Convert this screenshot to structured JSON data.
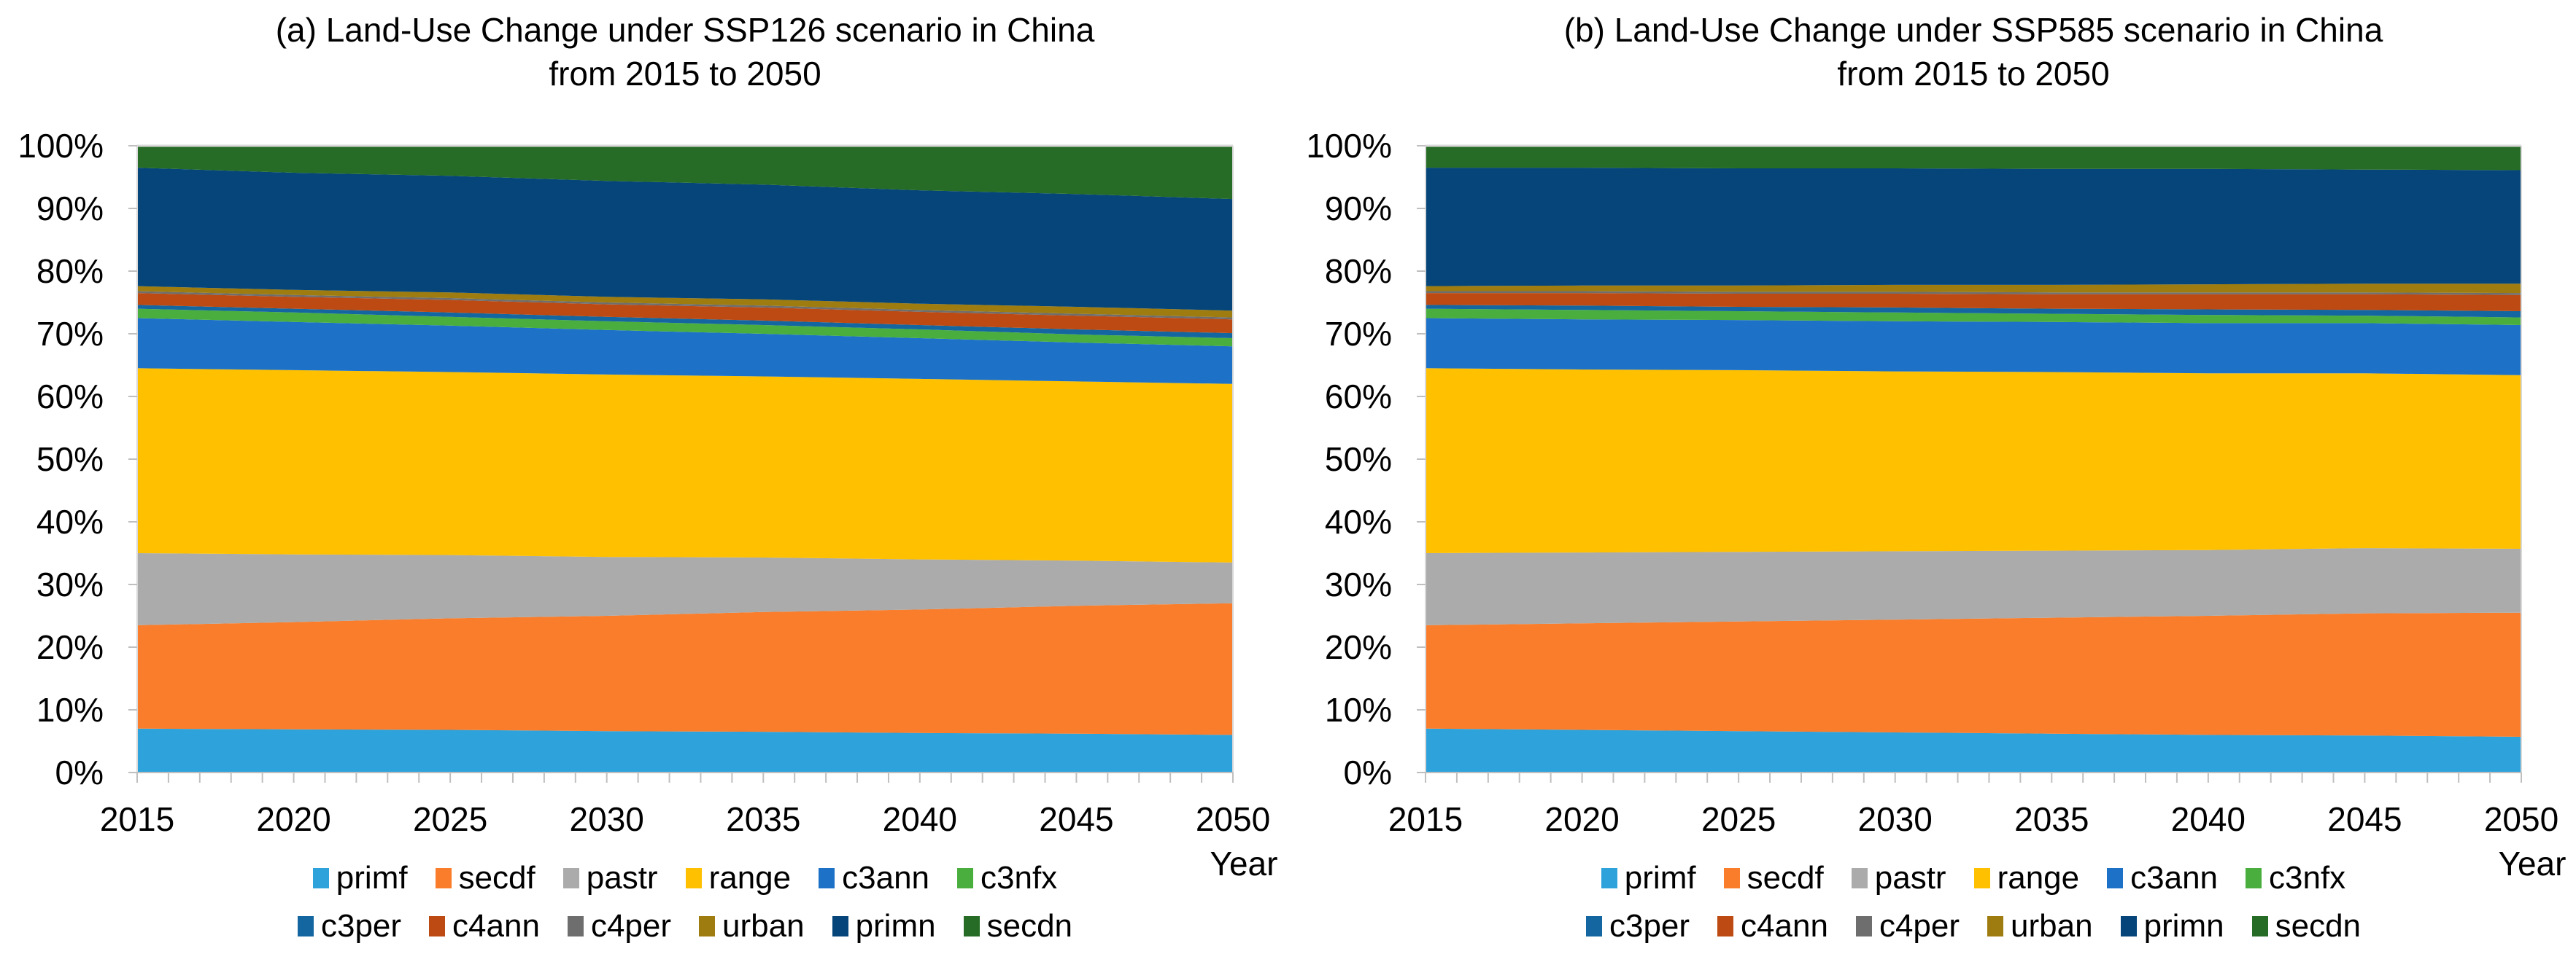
{
  "page": {
    "background": "#ffffff"
  },
  "chart_data": [
    {
      "type": "area",
      "stacked": true,
      "normalized": "percent",
      "title": "(a) Land-Use Change under SSP126 scenario in China\nfrom 2015 to 2050",
      "xlabel": "Year",
      "ylabel": "",
      "x": [
        2015,
        2020,
        2025,
        2030,
        2035,
        2040,
        2045,
        2050
      ],
      "x_major_tick_labels": [
        "2015",
        "2020",
        "2025",
        "2030",
        "2035",
        "2040",
        "2045",
        "2050"
      ],
      "x_minor_tick_step_years": 1,
      "ylim": [
        0,
        100
      ],
      "ytick_labels": [
        "0%",
        "10%",
        "20%",
        "30%",
        "40%",
        "50%",
        "60%",
        "70%",
        "80%",
        "90%",
        "100%"
      ],
      "grid": false,
      "legend_position": "bottom",
      "legend_rows": [
        [
          "primf",
          "secdf",
          "pastr",
          "range",
          "c3ann",
          "c3nfx"
        ],
        [
          "c3per",
          "c4ann",
          "c4per",
          "urban",
          "primn",
          "secdn"
        ]
      ],
      "axis_colors": {
        "tick": "#BFBFBF",
        "border": "#D9D9D9",
        "label": "#000000"
      },
      "series": [
        {
          "name": "primf",
          "color": "#2DA2DB",
          "values": [
            7.0,
            6.9,
            6.8,
            6.6,
            6.5,
            6.3,
            6.2,
            6.0
          ]
        },
        {
          "name": "secdf",
          "color": "#F97D2B",
          "values": [
            16.5,
            17.1,
            17.8,
            18.4,
            19.1,
            19.7,
            20.4,
            21.0
          ]
        },
        {
          "name": "pastr",
          "color": "#ABABAB",
          "values": [
            11.5,
            10.8,
            10.1,
            9.4,
            8.7,
            8.0,
            7.2,
            6.5
          ]
        },
        {
          "name": "range",
          "color": "#FFC000",
          "values": [
            29.5,
            29.4,
            29.2,
            29.1,
            28.9,
            28.8,
            28.6,
            28.5
          ]
        },
        {
          "name": "c3ann",
          "color": "#1D72C8",
          "values": [
            8.0,
            7.7,
            7.4,
            7.1,
            6.8,
            6.5,
            6.2,
            6.0
          ]
        },
        {
          "name": "c3nfx",
          "color": "#4AAE3F",
          "values": [
            1.5,
            1.5,
            1.4,
            1.4,
            1.4,
            1.4,
            1.3,
            1.3
          ]
        },
        {
          "name": "c3per",
          "color": "#1366A0",
          "values": [
            0.6,
            0.6,
            0.7,
            0.7,
            0.7,
            0.7,
            0.8,
            0.8
          ]
        },
        {
          "name": "c4ann",
          "color": "#BC4A12",
          "values": [
            1.9,
            1.9,
            2.0,
            2.0,
            2.1,
            2.1,
            2.2,
            2.2
          ]
        },
        {
          "name": "c4per",
          "color": "#6E6E6E",
          "values": [
            0.3,
            0.3,
            0.3,
            0.3,
            0.3,
            0.3,
            0.3,
            0.3
          ]
        },
        {
          "name": "urban",
          "color": "#9E7C10",
          "values": [
            0.8,
            0.8,
            0.9,
            0.9,
            1.0,
            1.0,
            1.1,
            1.1
          ]
        },
        {
          "name": "primn",
          "color": "#054579",
          "values": [
            18.9,
            18.7,
            18.6,
            18.5,
            18.3,
            18.1,
            18.0,
            17.8
          ]
        },
        {
          "name": "secdn",
          "color": "#266C26",
          "values": [
            3.5,
            4.3,
            4.8,
            5.6,
            6.2,
            7.1,
            7.7,
            8.5
          ]
        }
      ]
    },
    {
      "type": "area",
      "stacked": true,
      "normalized": "percent",
      "title": "(b) Land-Use Change under SSP585 scenario in China\nfrom 2015 to 2050",
      "xlabel": "Year",
      "ylabel": "",
      "x": [
        2015,
        2020,
        2025,
        2030,
        2035,
        2040,
        2045,
        2050
      ],
      "x_major_tick_labels": [
        "2015",
        "2020",
        "2025",
        "2030",
        "2035",
        "2040",
        "2045",
        "2050"
      ],
      "x_minor_tick_step_years": 1,
      "ylim": [
        0,
        100
      ],
      "ytick_labels": [
        "0%",
        "10%",
        "20%",
        "30%",
        "40%",
        "50%",
        "60%",
        "70%",
        "80%",
        "90%",
        "100%"
      ],
      "grid": false,
      "legend_position": "bottom",
      "legend_rows": [
        [
          "primf",
          "secdf",
          "pastr",
          "range",
          "c3ann",
          "c3nfx"
        ],
        [
          "c3per",
          "c4ann",
          "c4per",
          "urban",
          "primn",
          "secdn"
        ]
      ],
      "axis_colors": {
        "tick": "#BFBFBF",
        "border": "#D9D9D9",
        "label": "#000000"
      },
      "series": [
        {
          "name": "primf",
          "color": "#2DA2DB",
          "values": [
            7.0,
            6.8,
            6.6,
            6.4,
            6.2,
            6.0,
            5.9,
            5.7
          ]
        },
        {
          "name": "secdf",
          "color": "#F97D2B",
          "values": [
            16.5,
            17.0,
            17.5,
            18.0,
            18.5,
            19.0,
            19.5,
            19.8
          ]
        },
        {
          "name": "pastr",
          "color": "#ABABAB",
          "values": [
            11.5,
            11.3,
            11.1,
            10.9,
            10.7,
            10.5,
            10.4,
            10.2
          ]
        },
        {
          "name": "range",
          "color": "#FFC000",
          "values": [
            29.5,
            29.2,
            29.0,
            28.7,
            28.5,
            28.2,
            27.9,
            27.7
          ]
        },
        {
          "name": "c3ann",
          "color": "#1D72C8",
          "values": [
            8.0,
            8.0,
            8.0,
            8.0,
            8.0,
            8.0,
            8.0,
            8.0
          ]
        },
        {
          "name": "c3nfx",
          "color": "#4AAE3F",
          "values": [
            1.5,
            1.5,
            1.4,
            1.4,
            1.3,
            1.3,
            1.2,
            1.2
          ]
        },
        {
          "name": "c3per",
          "color": "#1366A0",
          "values": [
            0.6,
            0.7,
            0.7,
            0.8,
            0.8,
            0.9,
            0.9,
            1.0
          ]
        },
        {
          "name": "c4ann",
          "color": "#BC4A12",
          "values": [
            1.9,
            2.0,
            2.1,
            2.2,
            2.3,
            2.4,
            2.5,
            2.6
          ]
        },
        {
          "name": "c4per",
          "color": "#6E6E6E",
          "values": [
            0.3,
            0.3,
            0.3,
            0.3,
            0.3,
            0.3,
            0.3,
            0.3
          ]
        },
        {
          "name": "urban",
          "color": "#9E7C10",
          "values": [
            0.8,
            0.9,
            1.0,
            1.1,
            1.2,
            1.3,
            1.4,
            1.5
          ]
        },
        {
          "name": "primn",
          "color": "#054579",
          "values": [
            18.9,
            18.8,
            18.7,
            18.6,
            18.5,
            18.4,
            18.2,
            18.1
          ]
        },
        {
          "name": "secdn",
          "color": "#266C26",
          "values": [
            3.5,
            3.5,
            3.6,
            3.6,
            3.7,
            3.7,
            3.8,
            3.9
          ]
        }
      ]
    }
  ]
}
